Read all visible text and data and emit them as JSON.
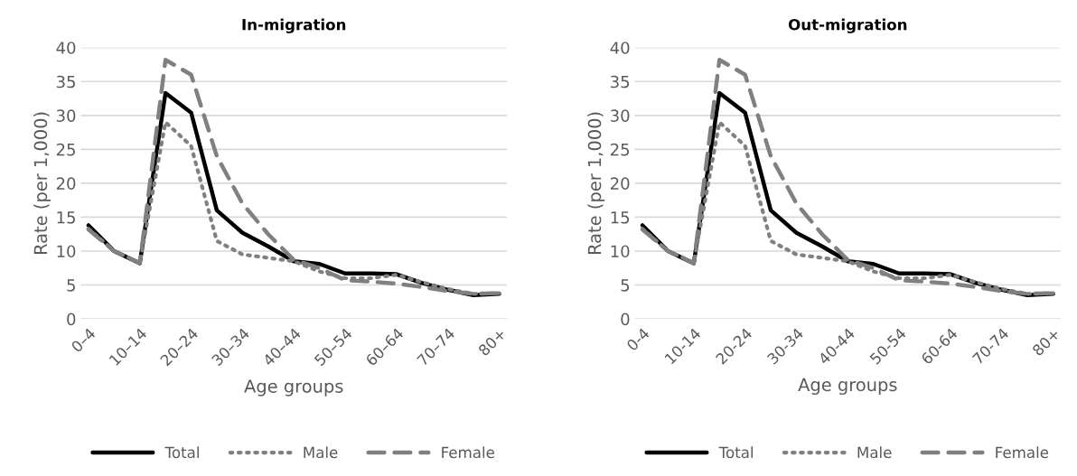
{
  "chart_data": [
    {
      "type": "line",
      "title": "In-migration",
      "xlabel": "Age groups",
      "ylabel": "Rate (per 1,000)",
      "categories": [
        "0–4",
        null,
        "10–14",
        null,
        "20–24",
        null,
        "30–34",
        null,
        "40–44",
        null,
        "50–54",
        null,
        "60–64",
        null,
        "70–74",
        null,
        "80+"
      ],
      "ylim": [
        0,
        40
      ],
      "yticks": [
        0,
        5,
        10,
        15,
        20,
        25,
        30,
        35,
        40
      ],
      "grid": "y",
      "legend": "bottom",
      "series": [
        {
          "name": "Total",
          "color": "#000000",
          "line_style": "solid",
          "values": [
            13.8,
            10,
            8.2,
            33.3,
            30.4,
            16,
            12.7,
            10.7,
            8.5,
            8.1,
            6.7,
            6.7,
            6.6,
            5.3,
            4.3,
            3.5,
            3.7
          ]
        },
        {
          "name": "Male",
          "color": "#808080",
          "line_style": "dotted",
          "values": [
            13.3,
            10,
            8.3,
            29,
            25.5,
            11.5,
            9.5,
            9,
            8.5,
            7,
            6,
            6,
            6.5,
            5.4,
            4.4,
            3.7,
            3.8
          ]
        },
        {
          "name": "Female",
          "color": "#808080",
          "line_style": "dashed",
          "values": [
            13.2,
            10,
            8.2,
            38.2,
            36,
            24,
            17,
            12.5,
            8.7,
            7.5,
            5.7,
            5.5,
            5.2,
            4.7,
            4.1,
            3.7,
            3.8
          ]
        }
      ]
    },
    {
      "type": "line",
      "title": "Out-migration",
      "xlabel": "Age groups",
      "ylabel": "Rate (per 1,000)",
      "categories": [
        "0-4",
        null,
        "10-14",
        null,
        "20-24",
        null,
        "30-34",
        null,
        "40-44",
        null,
        "50-54",
        null,
        "60-64",
        null,
        "70-74",
        null,
        "80+"
      ],
      "ylim": [
        0,
        40
      ],
      "yticks": [
        0,
        5,
        10,
        15,
        20,
        25,
        30,
        35,
        40
      ],
      "grid": "y",
      "legend": "bottom",
      "series": [
        {
          "name": "Total",
          "color": "#000000",
          "line_style": "solid",
          "values": [
            13.8,
            10,
            8.2,
            33.3,
            30.4,
            16,
            12.7,
            10.7,
            8.5,
            8.1,
            6.7,
            6.7,
            6.6,
            5.3,
            4.3,
            3.5,
            3.7
          ]
        },
        {
          "name": "Male",
          "color": "#808080",
          "line_style": "dotted",
          "values": [
            13.3,
            10,
            8.3,
            29,
            25.5,
            11.5,
            9.5,
            9,
            8.5,
            7,
            6,
            6,
            6.5,
            5.4,
            4.4,
            3.7,
            3.8
          ]
        },
        {
          "name": "Female",
          "color": "#808080",
          "line_style": "dashed",
          "values": [
            13.2,
            10,
            8.2,
            38.2,
            36,
            24,
            17,
            12.5,
            8.7,
            7.5,
            5.7,
            5.5,
            5.2,
            4.7,
            4.1,
            3.7,
            3.8
          ]
        }
      ]
    }
  ]
}
